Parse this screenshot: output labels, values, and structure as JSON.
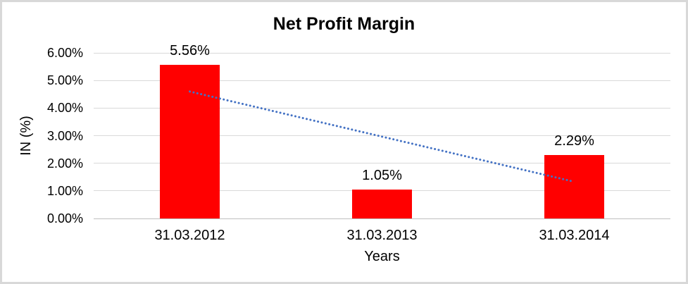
{
  "chart_data": {
    "type": "bar",
    "title": "Net Profit Margin",
    "xlabel": "Years",
    "ylabel": "IN (%)",
    "categories": [
      "31.03.2012",
      "31.03.2013",
      "31.03.2014"
    ],
    "values": [
      5.56,
      1.05,
      2.29
    ],
    "data_labels": [
      "5.56%",
      "1.05%",
      "2.29%"
    ],
    "yticks": [
      "0.00%",
      "1.00%",
      "2.00%",
      "3.00%",
      "4.00%",
      "5.00%",
      "6.00%"
    ],
    "ylim": [
      0,
      6
    ],
    "grid": "horizontal",
    "legend": "none",
    "bar_color": "#ff0000",
    "gridline_color": "#d9d9d9",
    "axis_line_color": "#bfbfbf",
    "text_color": "#000000",
    "trendline": {
      "type": "linear",
      "style": "dotted",
      "color": "#4472c4",
      "start_value": 4.6,
      "end_value": 1.33
    }
  }
}
